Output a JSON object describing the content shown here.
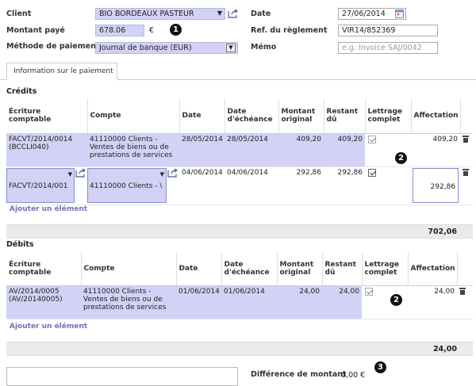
{
  "header": {
    "client_label": "Client",
    "client_value": "BIO BORDEAUX PASTEUR",
    "amount_label": "Montant payé",
    "amount_value": "678.06",
    "amount_currency": "€",
    "method_label": "Méthode de paiement",
    "method_value": "Journal de banque (EUR)",
    "date_label": "Date",
    "date_value": "27/06/2014",
    "ref_label": "Ref. du règlement",
    "ref_value": "VIR14/852369",
    "memo_label": "Mémo",
    "memo_placeholder": "e.g. Invoice SAJ/0042"
  },
  "badges": {
    "one": "1",
    "two": "2",
    "three": "3"
  },
  "tab": {
    "label": "Information sur le paiement"
  },
  "credits": {
    "title": "Crédits",
    "columns": [
      "Écriture comptable",
      "Compte",
      "Date",
      "Date d'échéance",
      "Montant original",
      "Restant dû",
      "Lettrage complet",
      "Affectation"
    ],
    "rows": [
      {
        "entry": "FACVT/2014/0014 (BCCLI040)",
        "account": "41110000 Clients - Ventes de biens ou de prestations de services",
        "date": "28/05/2014",
        "due": "28/05/2014",
        "original": "409,20",
        "remaining": "409,20",
        "reconcile": true,
        "allocation": "409,20"
      },
      {
        "entry": "FACVT/2014/001",
        "account": "41110000 Clients - \\",
        "date": "04/06/2014",
        "due": "04/06/2014",
        "original": "292,86",
        "remaining": "292,86",
        "reconcile": true,
        "allocation": "292,86"
      }
    ],
    "add_label": "Ajouter un élément",
    "total": "702,06"
  },
  "debits": {
    "title": "Débits",
    "columns": [
      "Écriture comptable",
      "Compte",
      "Date",
      "Date d'échéance",
      "Montant original",
      "Restant dû",
      "Lettrage complet",
      "Affectation"
    ],
    "rows": [
      {
        "entry": "AV/2014/0005 (AV/20140005)",
        "account": "41110000 Clients - Ventes de biens ou de prestations de services",
        "date": "01/06/2014",
        "due": "01/06/2014",
        "original": "24,00",
        "remaining": "24,00",
        "reconcile": true,
        "allocation": "24,00"
      }
    ],
    "add_label": "Ajouter un élément",
    "total": "24,00"
  },
  "footer": {
    "difference_label": "Différence de montant",
    "difference_value": "0,00 €"
  },
  "colors": {
    "required_bg": "#d2d2f6",
    "link": "#7a6fb0",
    "total_bar": "#eaeaea"
  },
  "icons": [
    "external-link-icon",
    "calendar-icon",
    "dropdown-arrow-icon",
    "trash-icon",
    "checkbox-icon"
  ]
}
